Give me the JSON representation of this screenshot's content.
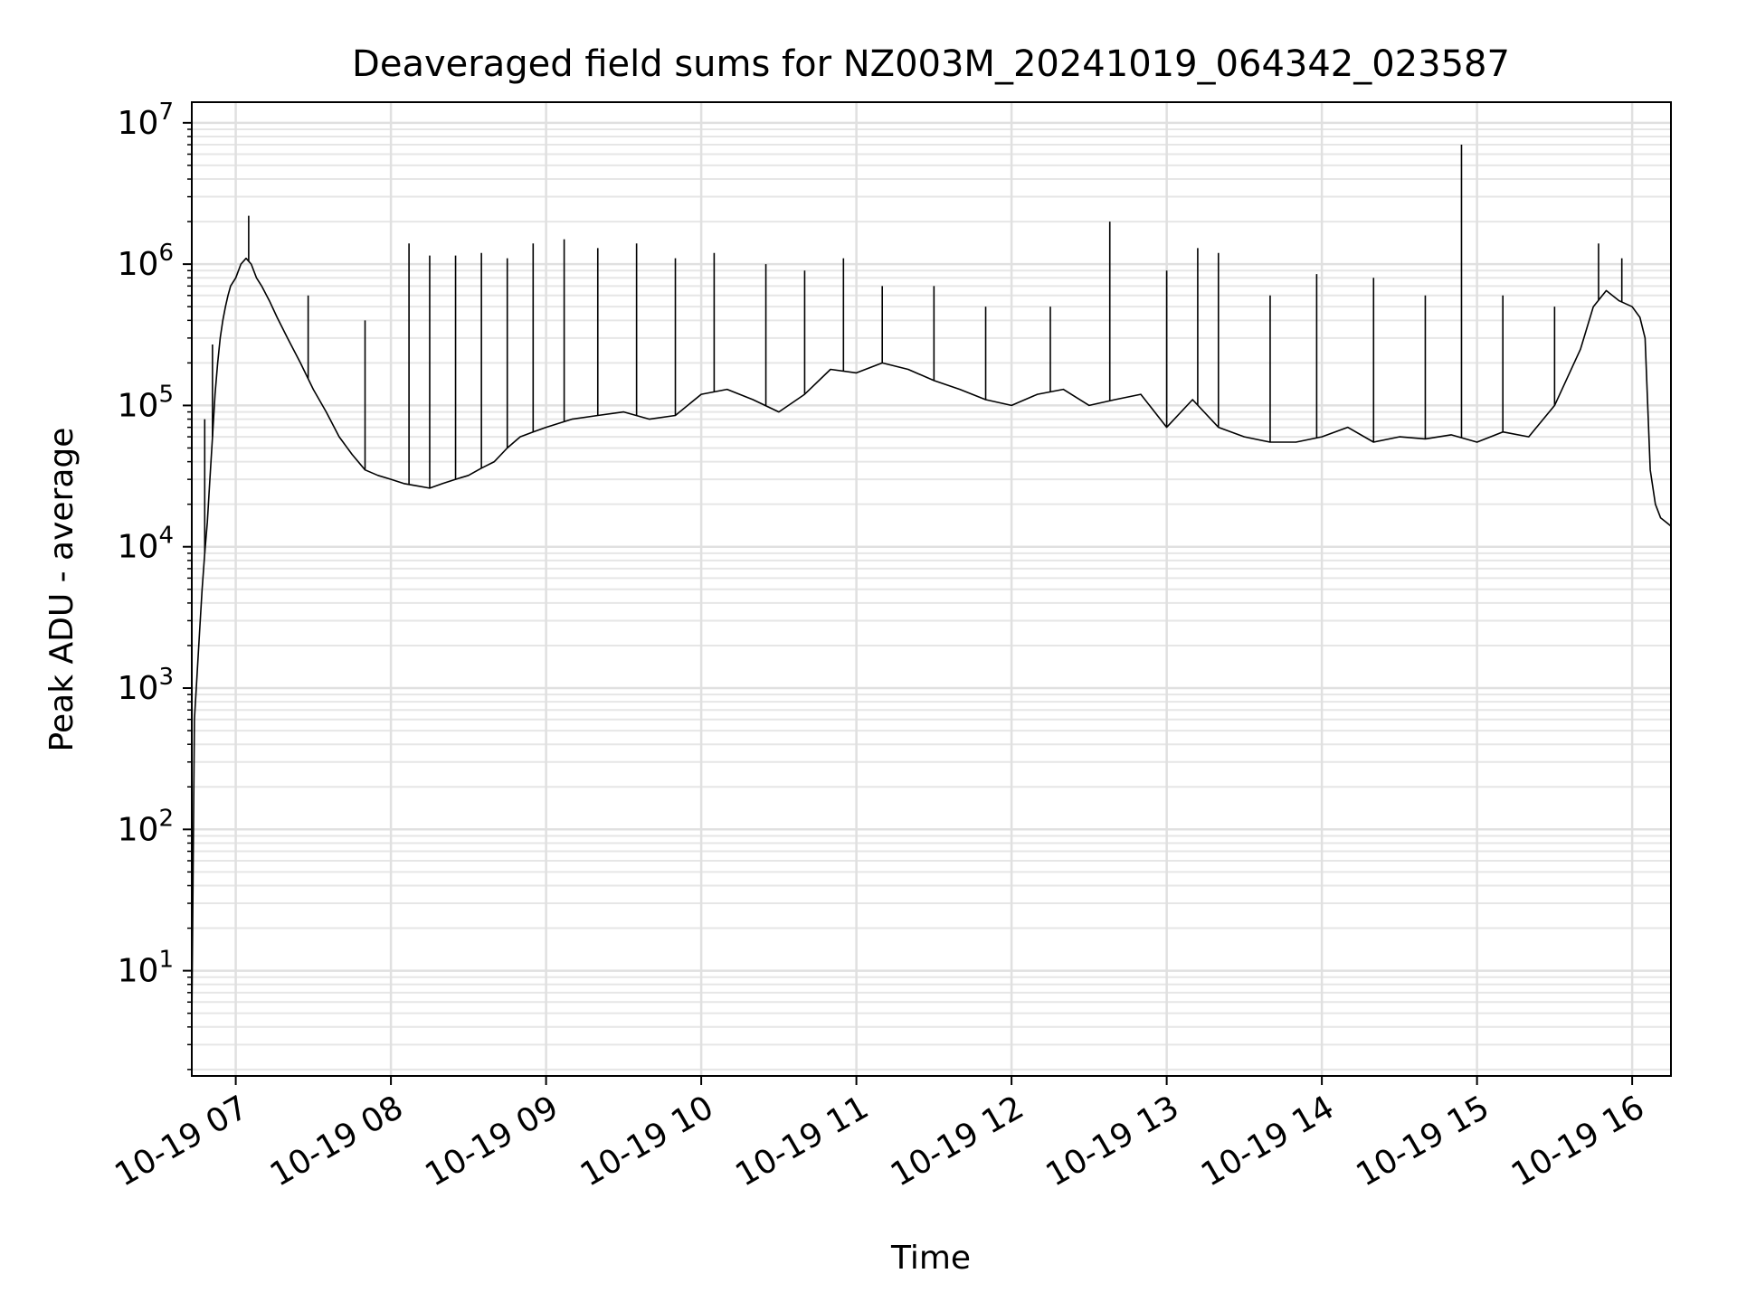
{
  "chart_data": {
    "type": "line",
    "title": "Deaveraged field sums for NZ003M_20241019_064342_023587",
    "xlabel": "Time",
    "ylabel": "Peak ADU - average",
    "yscale": "log",
    "ylim": [
      1.8,
      14000000
    ],
    "xlim": [
      "2024-10-19 06:43",
      "2024-10-19 16:15"
    ],
    "grid": true,
    "line_color": "#000000",
    "x_ticks": [
      {
        "x": "2024-10-19 07:00",
        "label": "10-19 07"
      },
      {
        "x": "2024-10-19 08:00",
        "label": "10-19 08"
      },
      {
        "x": "2024-10-19 09:00",
        "label": "10-19 09"
      },
      {
        "x": "2024-10-19 10:00",
        "label": "10-19 10"
      },
      {
        "x": "2024-10-19 11:00",
        "label": "10-19 11"
      },
      {
        "x": "2024-10-19 12:00",
        "label": "10-19 12"
      },
      {
        "x": "2024-10-19 13:00",
        "label": "10-19 13"
      },
      {
        "x": "2024-10-19 14:00",
        "label": "10-19 14"
      },
      {
        "x": "2024-10-19 15:00",
        "label": "10-19 15"
      },
      {
        "x": "2024-10-19 16:00",
        "label": "10-19 16"
      }
    ],
    "y_ticks": [
      {
        "value": 10,
        "base": "10",
        "exp": "1"
      },
      {
        "value": 100,
        "base": "10",
        "exp": "2"
      },
      {
        "value": 1000,
        "base": "10",
        "exp": "3"
      },
      {
        "value": 10000,
        "base": "10",
        "exp": "4"
      },
      {
        "value": 100000,
        "base": "10",
        "exp": "5"
      },
      {
        "value": 1000000,
        "base": "10",
        "exp": "6"
      },
      {
        "value": 10000000,
        "base": "10",
        "exp": "7"
      }
    ],
    "series": [
      {
        "x": [
          "2024-10-19 06:43",
          "2024-10-19 06:44",
          "2024-10-19 06:45",
          "2024-10-19 06:46",
          "2024-10-19 06:47",
          "2024-10-19 06:48",
          "2024-10-19 06:49",
          "2024-10-19 06:50",
          "2024-10-19 06:51",
          "2024-10-19 06:52",
          "2024-10-19 06:53",
          "2024-10-19 06:54",
          "2024-10-19 06:55",
          "2024-10-19 06:56",
          "2024-10-19 06:57",
          "2024-10-19 06:58",
          "2024-10-19 07:00",
          "2024-10-19 07:02",
          "2024-10-19 07:04",
          "2024-10-19 07:06",
          "2024-10-19 07:08",
          "2024-10-19 07:10",
          "2024-10-19 07:13",
          "2024-10-19 07:16",
          "2024-10-19 07:20",
          "2024-10-19 07:25",
          "2024-10-19 07:30",
          "2024-10-19 07:35",
          "2024-10-19 07:40",
          "2024-10-19 07:45",
          "2024-10-19 07:50",
          "2024-10-19 07:55",
          "2024-10-19 08:00",
          "2024-10-19 08:05",
          "2024-10-19 08:10",
          "2024-10-19 08:15",
          "2024-10-19 08:20",
          "2024-10-19 08:25",
          "2024-10-19 08:30",
          "2024-10-19 08:35",
          "2024-10-19 08:40",
          "2024-10-19 08:45",
          "2024-10-19 08:50",
          "2024-10-19 08:55",
          "2024-10-19 09:00",
          "2024-10-19 09:10",
          "2024-10-19 09:20",
          "2024-10-19 09:30",
          "2024-10-19 09:40",
          "2024-10-19 09:50",
          "2024-10-19 10:00",
          "2024-10-19 10:10",
          "2024-10-19 10:20",
          "2024-10-19 10:30",
          "2024-10-19 10:40",
          "2024-10-19 10:50",
          "2024-10-19 11:00",
          "2024-10-19 11:10",
          "2024-10-19 11:20",
          "2024-10-19 11:30",
          "2024-10-19 11:40",
          "2024-10-19 11:50",
          "2024-10-19 12:00",
          "2024-10-19 12:10",
          "2024-10-19 12:20",
          "2024-10-19 12:30",
          "2024-10-19 12:40",
          "2024-10-19 12:50",
          "2024-10-19 13:00",
          "2024-10-19 13:10",
          "2024-10-19 13:20",
          "2024-10-19 13:30",
          "2024-10-19 13:40",
          "2024-10-19 13:50",
          "2024-10-19 14:00",
          "2024-10-19 14:10",
          "2024-10-19 14:20",
          "2024-10-19 14:30",
          "2024-10-19 14:40",
          "2024-10-19 14:50",
          "2024-10-19 15:00",
          "2024-10-19 15:10",
          "2024-10-19 15:20",
          "2024-10-19 15:30",
          "2024-10-19 15:40",
          "2024-10-19 15:45",
          "2024-10-19 15:50",
          "2024-10-19 15:55",
          "2024-10-19 16:00",
          "2024-10-19 16:03",
          "2024-10-19 16:05",
          "2024-10-19 16:07",
          "2024-10-19 16:09",
          "2024-10-19 16:11",
          "2024-10-19 16:13",
          "2024-10-19 16:15"
        ],
        "y": [
          4,
          600,
          1200,
          2500,
          5000,
          9000,
          15000,
          30000,
          60000,
          120000,
          200000,
          300000,
          400000,
          500000,
          600000,
          700000,
          800000,
          1000000,
          1100000,
          1000000,
          800000,
          700000,
          550000,
          420000,
          300000,
          200000,
          130000,
          90000,
          60000,
          45000,
          35000,
          32000,
          30000,
          28000,
          27000,
          26000,
          28000,
          30000,
          32000,
          36000,
          40000,
          50000,
          60000,
          65000,
          70000,
          80000,
          85000,
          90000,
          80000,
          85000,
          120000,
          130000,
          110000,
          90000,
          120000,
          180000,
          170000,
          200000,
          180000,
          150000,
          130000,
          110000,
          100000,
          120000,
          130000,
          100000,
          110000,
          120000,
          70000,
          110000,
          70000,
          60000,
          55000,
          55000,
          60000,
          70000,
          55000,
          60000,
          58000,
          62000,
          55000,
          65000,
          60000,
          100000,
          250000,
          500000,
          650000,
          550000,
          500000,
          420000,
          300000,
          35000,
          20000,
          16000,
          15000,
          14000
        ]
      }
    ],
    "spikes": [
      {
        "x": "2024-10-19 06:48",
        "y": 80000
      },
      {
        "x": "2024-10-19 06:51",
        "y": 270000
      },
      {
        "x": "2024-10-19 07:05",
        "y": 2200000
      },
      {
        "x": "2024-10-19 07:28",
        "y": 600000
      },
      {
        "x": "2024-10-19 07:50",
        "y": 400000
      },
      {
        "x": "2024-10-19 08:07",
        "y": 1400000
      },
      {
        "x": "2024-10-19 08:15",
        "y": 1150000
      },
      {
        "x": "2024-10-19 08:25",
        "y": 1150000
      },
      {
        "x": "2024-10-19 08:35",
        "y": 1200000
      },
      {
        "x": "2024-10-19 08:45",
        "y": 1100000
      },
      {
        "x": "2024-10-19 08:55",
        "y": 1400000
      },
      {
        "x": "2024-10-19 09:07",
        "y": 1500000
      },
      {
        "x": "2024-10-19 09:20",
        "y": 1300000
      },
      {
        "x": "2024-10-19 09:35",
        "y": 1400000
      },
      {
        "x": "2024-10-19 09:50",
        "y": 1100000
      },
      {
        "x": "2024-10-19 10:05",
        "y": 1200000
      },
      {
        "x": "2024-10-19 10:25",
        "y": 1000000
      },
      {
        "x": "2024-10-19 10:40",
        "y": 900000
      },
      {
        "x": "2024-10-19 10:55",
        "y": 1100000
      },
      {
        "x": "2024-10-19 11:10",
        "y": 700000
      },
      {
        "x": "2024-10-19 11:30",
        "y": 700000
      },
      {
        "x": "2024-10-19 11:50",
        "y": 500000
      },
      {
        "x": "2024-10-19 12:15",
        "y": 500000
      },
      {
        "x": "2024-10-19 12:38",
        "y": 2000000
      },
      {
        "x": "2024-10-19 13:00",
        "y": 900000
      },
      {
        "x": "2024-10-19 13:12",
        "y": 1300000
      },
      {
        "x": "2024-10-19 13:20",
        "y": 1200000
      },
      {
        "x": "2024-10-19 13:40",
        "y": 600000
      },
      {
        "x": "2024-10-19 13:58",
        "y": 850000
      },
      {
        "x": "2024-10-19 14:20",
        "y": 800000
      },
      {
        "x": "2024-10-19 14:40",
        "y": 600000
      },
      {
        "x": "2024-10-19 14:54",
        "y": 7000000
      },
      {
        "x": "2024-10-19 15:10",
        "y": 600000
      },
      {
        "x": "2024-10-19 15:30",
        "y": 500000
      },
      {
        "x": "2024-10-19 15:47",
        "y": 1400000
      },
      {
        "x": "2024-10-19 15:56",
        "y": 1100000
      }
    ]
  }
}
